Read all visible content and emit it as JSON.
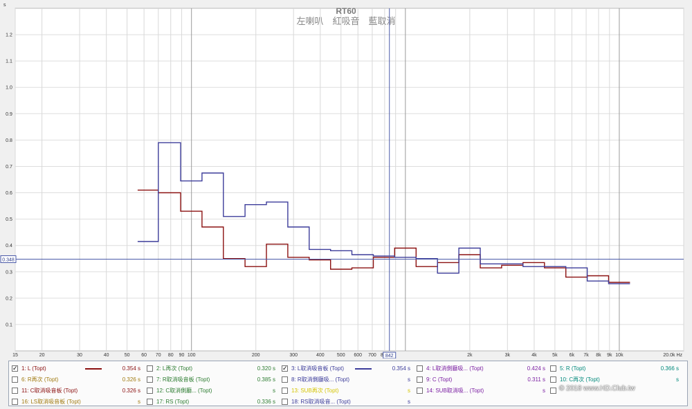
{
  "chart_data": {
    "type": "line",
    "title": "RT60",
    "subtitle": "左喇叭　紅吸音　藍取消",
    "xlabel": "",
    "ylabel": "s",
    "x_unit": "Hz",
    "x_scale": "log",
    "xlim": [
      15,
      20000
    ],
    "ylim": [
      0,
      1.3
    ],
    "x_ticks": [
      15,
      20,
      30,
      40,
      50,
      60,
      70,
      80,
      90,
      100,
      200,
      300,
      400,
      500,
      600,
      700,
      800,
      900,
      1000,
      2000,
      3000,
      4000,
      5000,
      6000,
      7000,
      8000,
      9000,
      10000,
      20000
    ],
    "x_tick_labels": [
      "15",
      "20",
      "30",
      "40",
      "50",
      "60",
      "70",
      "80",
      "90",
      "100",
      "200",
      "300",
      "400",
      "500",
      "600",
      "700",
      "800",
      "",
      "",
      "2k",
      "3k",
      "4k",
      "5k",
      "6k",
      "7k",
      "8k",
      "9k",
      "10k",
      "20.0k Hz"
    ],
    "y_ticks": [
      0.1,
      0.2,
      0.3,
      0.4,
      0.5,
      0.6,
      0.7,
      0.8,
      0.9,
      1.0,
      1.1,
      1.2
    ],
    "y_tick_labels": [
      "0.1",
      "0.2",
      "0.3",
      "0.4",
      "0.5",
      "0.6",
      "0.7",
      "0.8",
      "0.9",
      "1.0",
      "1.1",
      "1.2"
    ],
    "grid": true,
    "legend": "bottom",
    "cursor": {
      "x": 842,
      "y": 0.348,
      "x_label": "842",
      "y_label": "0.348"
    },
    "series": [
      {
        "name": "1: L (Topt)",
        "color": "#8b1010",
        "band_edges": [
          56,
          70,
          89,
          112,
          141,
          178,
          224,
          282,
          355,
          447,
          562,
          708,
          891,
          1122,
          1413,
          1778,
          2239,
          2818,
          3548,
          4467,
          5623,
          7079,
          8913,
          11220
        ],
        "values": [
          0.61,
          0.6,
          0.53,
          0.47,
          0.35,
          0.32,
          0.405,
          0.355,
          0.345,
          0.31,
          0.315,
          0.355,
          0.39,
          0.32,
          0.335,
          0.365,
          0.315,
          0.325,
          0.335,
          0.315,
          0.28,
          0.285,
          0.26
        ]
      },
      {
        "name": "3: L取消吸音板 (Topt)",
        "color": "#3c3c9a",
        "band_edges": [
          56,
          70,
          89,
          112,
          141,
          178,
          224,
          282,
          355,
          447,
          562,
          708,
          891,
          1122,
          1413,
          1778,
          2239,
          2818,
          3548,
          4467,
          5623,
          7079,
          8913,
          11220
        ],
        "values": [
          0.415,
          0.79,
          0.645,
          0.675,
          0.51,
          0.555,
          0.565,
          0.47,
          0.385,
          0.38,
          0.365,
          0.36,
          0.355,
          0.35,
          0.295,
          0.39,
          0.33,
          0.33,
          0.32,
          0.32,
          0.315,
          0.265,
          0.255
        ]
      }
    ]
  },
  "legend_items": [
    {
      "id": "1",
      "label": "1: L (Topt)",
      "value": "0.354 s",
      "checked": true,
      "color": "#8b1010",
      "swatch": true
    },
    {
      "id": "2",
      "label": "2: L再次 (Topt)",
      "value": "0.320 s",
      "checked": false,
      "color": "#2e7d32",
      "swatch": false
    },
    {
      "id": "3",
      "label": "3: L取消吸音板 (Topt)",
      "value": "0.354 s",
      "checked": true,
      "color": "#3c3c9a",
      "swatch": true
    },
    {
      "id": "4",
      "label": "4: L取消側廳吸... (Topt)",
      "value": "0.424 s",
      "checked": false,
      "color": "#7b1fa2",
      "swatch": false
    },
    {
      "id": "5",
      "label": "5: R (Topt)",
      "value": "0.366 s",
      "checked": false,
      "color": "#00897b",
      "swatch": false
    },
    {
      "id": "6",
      "label": "6: R再次 (Topt)",
      "value": "0.326 s",
      "checked": false,
      "color": "#a07a10",
      "swatch": false
    },
    {
      "id": "7",
      "label": "7: R取消吸音板 (Topt)",
      "value": "0.385 s",
      "checked": false,
      "color": "#2e7d32",
      "swatch": false
    },
    {
      "id": "8",
      "label": "8: R取消側廳吸... (Topt)",
      "value": "s",
      "checked": false,
      "color": "#3c3c9a",
      "swatch": false
    },
    {
      "id": "9",
      "label": "9: C (Topt)",
      "value": "0.311 s",
      "checked": false,
      "color": "#7b1fa2",
      "swatch": false
    },
    {
      "id": "10",
      "label": "10: C再次 (Topt)",
      "value": "s",
      "checked": false,
      "color": "#00897b",
      "swatch": false
    },
    {
      "id": "11",
      "label": "11: C取消吸音板 (Topt)",
      "value": "0.326 s",
      "checked": false,
      "color": "#8b1010",
      "swatch": false
    },
    {
      "id": "12",
      "label": "12: C取消側廳... (Topt)",
      "value": "s",
      "checked": false,
      "color": "#2e7d32",
      "swatch": false
    },
    {
      "id": "13",
      "label": "13: SUB再次 (Topt)",
      "value": "s",
      "checked": false,
      "color": "#d4c400",
      "swatch": false
    },
    {
      "id": "14",
      "label": "14: SUB取消吸... (Topt)",
      "value": "s",
      "checked": false,
      "color": "#7b1fa2",
      "swatch": false
    },
    {
      "id": "15",
      "label": "",
      "value": "",
      "checked": false,
      "color": "#00897b",
      "swatch": false
    },
    {
      "id": "16",
      "label": "16: LS取消吸音板 (Topt)",
      "value": "s",
      "checked": false,
      "color": "#a07a10",
      "swatch": false
    },
    {
      "id": "17",
      "label": "17: RS (Topt)",
      "value": "0.336 s",
      "checked": false,
      "color": "#2e7d32",
      "swatch": false
    },
    {
      "id": "18",
      "label": "18: RS取消吸音... (Topt)",
      "value": "s",
      "checked": false,
      "color": "#3c3c9a",
      "swatch": false
    }
  ],
  "watermark": "© 2018 www.HD.Club.tw"
}
